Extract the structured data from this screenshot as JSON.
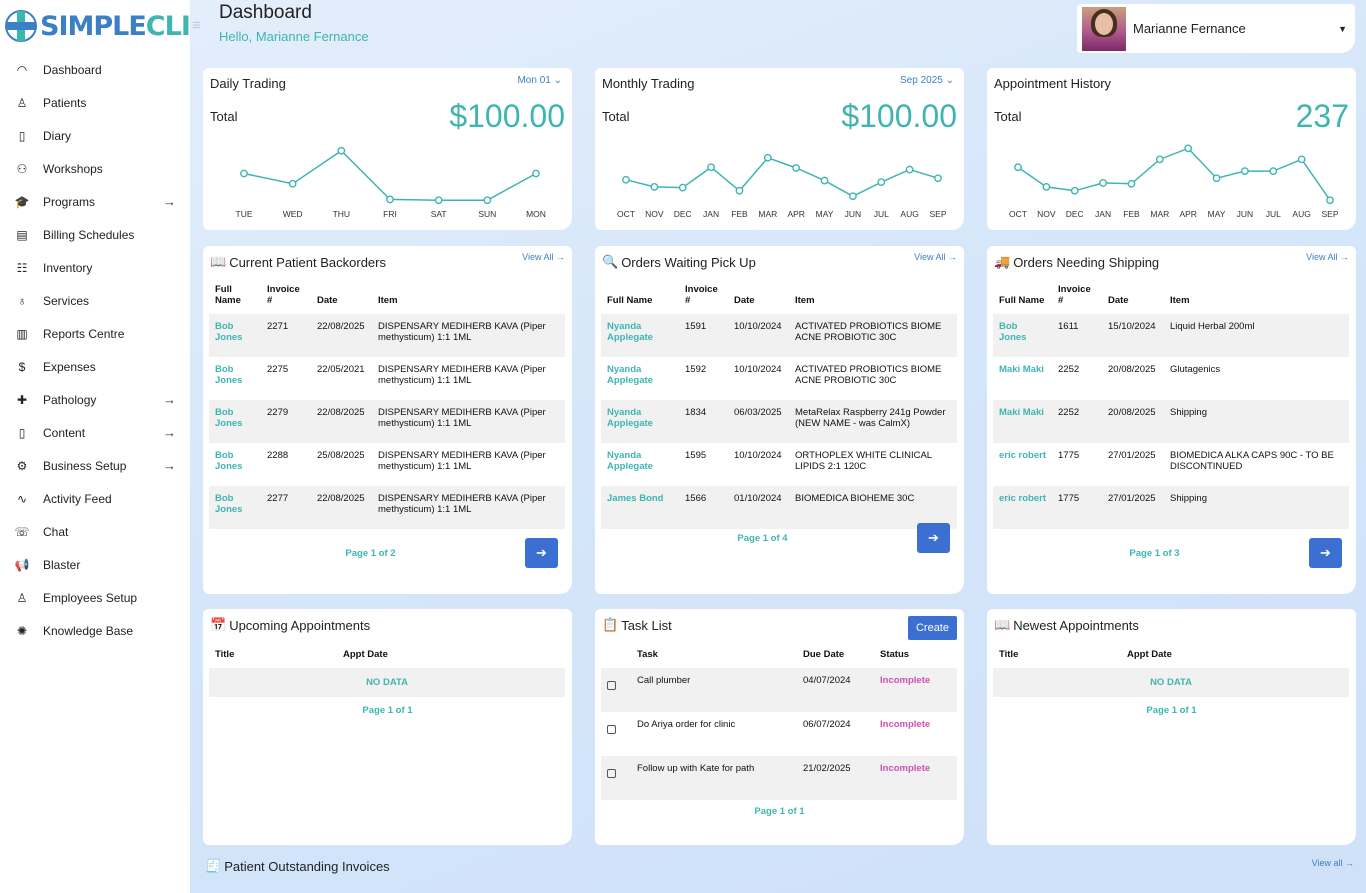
{
  "app": {
    "logo_a": "SIMPLE",
    "logo_b": "CLINIC"
  },
  "header": {
    "title": "Dashboard",
    "greeting": "Hello, Marianne Fernance",
    "user_name": "Marianne Fernance"
  },
  "sidebar": {
    "items": [
      {
        "label": "Dashboard",
        "icon": "gauge-icon",
        "arrow": false
      },
      {
        "label": "Patients",
        "icon": "user-icon",
        "arrow": false
      },
      {
        "label": "Diary",
        "icon": "book-icon",
        "arrow": false
      },
      {
        "label": "Workshops",
        "icon": "group-icon",
        "arrow": false
      },
      {
        "label": "Programs",
        "icon": "graduation-cap-icon",
        "arrow": true
      },
      {
        "label": "Billing Schedules",
        "icon": "receipt-icon",
        "arrow": false
      },
      {
        "label": "Inventory",
        "icon": "clipboard-icon",
        "arrow": false
      },
      {
        "label": "Services",
        "icon": "stethoscope-icon",
        "arrow": false
      },
      {
        "label": "Reports Centre",
        "icon": "report-icon",
        "arrow": false
      },
      {
        "label": "Expenses",
        "icon": "dollar-icon",
        "arrow": false
      },
      {
        "label": "Pathology",
        "icon": "medical-kit-icon",
        "arrow": true
      },
      {
        "label": "Content",
        "icon": "book-icon",
        "arrow": true
      },
      {
        "label": "Business Setup",
        "icon": "cog-icon",
        "arrow": true
      },
      {
        "label": "Activity Feed",
        "icon": "activity-icon",
        "arrow": false
      },
      {
        "label": "Chat",
        "icon": "chat-icon",
        "arrow": false
      },
      {
        "label": "Blaster",
        "icon": "megaphone-icon",
        "arrow": false
      },
      {
        "label": "Employees Setup",
        "icon": "user-icon",
        "arrow": false
      },
      {
        "label": "Knowledge Base",
        "icon": "brain-icon",
        "arrow": false
      }
    ]
  },
  "daily": {
    "title": "Daily Trading",
    "selector": "Mon 01",
    "total_label": "Total",
    "amount": "$100.00",
    "labels": [
      "TUE",
      "WED",
      "THU",
      "FRI",
      "SAT",
      "SUN",
      "MON"
    ],
    "values": [
      3.5,
      2.2,
      6.4,
      0.2,
      0.1,
      0.1,
      3.5
    ]
  },
  "monthly": {
    "title": "Monthly Trading",
    "selector": "Sep 2025",
    "total_label": "Total",
    "amount": "$100.00",
    "labels": [
      "OCT",
      "NOV",
      "DEC",
      "JAN",
      "FEB",
      "MAR",
      "APR",
      "MAY",
      "JUN",
      "JUL",
      "AUG",
      "SEP"
    ],
    "values": [
      2.7,
      1.8,
      1.7,
      4.3,
      1.3,
      5.5,
      4.2,
      2.6,
      0.6,
      2.4,
      4.0,
      2.9
    ]
  },
  "appt_history": {
    "title": "Appointment History",
    "total_label": "Total",
    "amount": "237",
    "labels": [
      "OCT",
      "NOV",
      "DEC",
      "JAN",
      "FEB",
      "MAR",
      "APR",
      "MAY",
      "JUN",
      "JUL",
      "AUG",
      "SEP"
    ],
    "values": [
      4.3,
      1.8,
      1.3,
      2.3,
      2.2,
      5.3,
      6.7,
      2.9,
      3.8,
      3.8,
      5.3,
      0.1
    ]
  },
  "backorders": {
    "title": "Current Patient Backorders",
    "view_all": "View All",
    "cols": [
      "Full Name",
      "Invoice #",
      "Date",
      "Item"
    ],
    "rows": [
      [
        "Bob Jones",
        "2271",
        "22/08/2025",
        "DISPENSARY MEDIHERB KAVA (Piper methysticum) 1:1 1ML"
      ],
      [
        "Bob Jones",
        "2275",
        "22/05/2021",
        "DISPENSARY MEDIHERB KAVA (Piper methysticum) 1:1 1ML"
      ],
      [
        "Bob Jones",
        "2279",
        "22/08/2025",
        "DISPENSARY MEDIHERB KAVA (Piper methysticum) 1:1 1ML"
      ],
      [
        "Bob Jones",
        "2288",
        "25/08/2025",
        "DISPENSARY MEDIHERB KAVA (Piper methysticum) 1:1 1ML"
      ],
      [
        "Bob Jones",
        "2277",
        "22/08/2025",
        "DISPENSARY MEDIHERB KAVA (Piper methysticum) 1:1 1ML"
      ]
    ],
    "pager": "Page 1 of 2"
  },
  "pickup": {
    "title": "Orders Waiting Pick Up",
    "view_all": "View All",
    "cols": [
      "Full Name",
      "Invoice #",
      "Date",
      "Item"
    ],
    "rows": [
      [
        "Nyanda Applegate",
        "1591",
        "10/10/2024",
        "ACTIVATED PROBIOTICS BIOME ACNE PROBIOTIC 30C"
      ],
      [
        "Nyanda Applegate",
        "1592",
        "10/10/2024",
        "ACTIVATED PROBIOTICS BIOME ACNE PROBIOTIC 30C"
      ],
      [
        "Nyanda Applegate",
        "1834",
        "06/03/2025",
        "MetaRelax Raspberry 241g Powder (NEW NAME - was CalmX)"
      ],
      [
        "Nyanda Applegate",
        "1595",
        "10/10/2024",
        "ORTHOPLEX WHITE CLINICAL LIPIDS 2:1 120C"
      ],
      [
        "James Bond",
        "1566",
        "01/10/2024",
        "BIOMEDICA BIOHEME 30C"
      ]
    ],
    "pager": "Page 1 of 4"
  },
  "shipping": {
    "title": "Orders Needing Shipping",
    "view_all": "View All",
    "cols": [
      "Full Name",
      "Invoice #",
      "Date",
      "Item"
    ],
    "rows": [
      [
        "Bob Jones",
        "1611",
        "15/10/2024",
        "Liquid Herbal 200ml"
      ],
      [
        "Maki Maki",
        "2252",
        "20/08/2025",
        "Glutagenics"
      ],
      [
        "Maki Maki",
        "2252",
        "20/08/2025",
        "Shipping"
      ],
      [
        "eric robert",
        "1775",
        "27/01/2025",
        "BIOMEDICA ALKA CAPS 90C - TO BE DISCONTINUED"
      ],
      [
        "eric robert",
        "1775",
        "27/01/2025",
        "Shipping"
      ]
    ],
    "pager": "Page 1 of 3"
  },
  "upcoming": {
    "title": "Upcoming Appointments",
    "cols": [
      "Title",
      "Appt Date"
    ],
    "nodata": "NO DATA",
    "pager": "Page 1 of 1"
  },
  "tasks": {
    "title": "Task List",
    "create": "Create",
    "cols": [
      "Task",
      "Due Date",
      "Status"
    ],
    "rows": [
      [
        "Call plumber",
        "04/07/2024",
        "Incomplete"
      ],
      [
        "Do Ariya order for clinic",
        "06/07/2024",
        "Incomplete"
      ],
      [
        "Follow up with Kate for path",
        "21/02/2025",
        "Incomplete"
      ]
    ],
    "pager": "Page 1 of 1"
  },
  "newest": {
    "title": "Newest Appointments",
    "cols": [
      "Title",
      "Appt Date"
    ],
    "nodata": "NO DATA",
    "pager": "Page 1 of 1"
  },
  "outstanding": {
    "title": "Patient Outstanding Invoices",
    "view_all": "View all"
  },
  "colors": {
    "teal": "#3fb5b2",
    "blue": "#3b6fd1",
    "pink": "#d24fb9"
  }
}
